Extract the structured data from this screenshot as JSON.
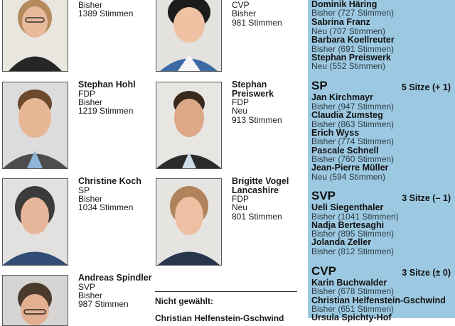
{
  "candidates": [
    {
      "id": "c1",
      "lines": [
        "Bisher",
        "1389 Stimmen"
      ]
    },
    {
      "id": "c2",
      "lines": [
        "CVP",
        "Bisher",
        "981 Stimmen"
      ]
    },
    {
      "id": "c3",
      "name": "Stephan Hohl",
      "lines": [
        "FDP",
        "Bisher",
        "1219 Stimmen"
      ]
    },
    {
      "id": "c4",
      "name": "Stephan\nPreiswerk",
      "lines": [
        "FDP",
        "Neu",
        "913 Stimmen"
      ]
    },
    {
      "id": "c5",
      "name": "Christine Koch",
      "lines": [
        "SP",
        "Bisher",
        "1034 Stimmen"
      ]
    },
    {
      "id": "c6",
      "name": "Brigitte Vogel\nLancashire",
      "lines": [
        "FDP",
        "Neu",
        "801 Stimmen"
      ]
    },
    {
      "id": "c7",
      "name": "Andreas Spindler",
      "lines": [
        "SVP",
        "Bisher",
        "987 Stimmen"
      ]
    }
  ],
  "not_elected": {
    "heading": "Nicht gewählt:",
    "first": "Christian Helfenstein-Gschwind"
  },
  "panel": {
    "top": [
      {
        "name": "Dominik Häring",
        "status": "Bisher (727 Stimmen)"
      },
      {
        "name": "Sabrina Franz",
        "status": "Neu (707 Stimmen)"
      },
      {
        "name": "Barbara Koellreuter",
        "status": "Bisher (691 Stimmen)"
      },
      {
        "name": "Stephan Preiswerk",
        "status": "Neu (552 Stimmen)"
      }
    ],
    "parties": [
      {
        "party": "SP",
        "seats": "5 Sitze (+ 1)",
        "members": [
          {
            "name": "Jan Kirchmayr",
            "status": "Bisher (947 Stimmen)"
          },
          {
            "name": "Claudia Zumsteg",
            "status": "Bisher (863 Stimmen)"
          },
          {
            "name": "Erich Wyss",
            "status": "Bisher (774 Stimmen)"
          },
          {
            "name": "Pascale Schnell",
            "status": "Bisher (760 Stimmen)"
          },
          {
            "name": "Jean-Pierre Müller",
            "status": "Neu (594 Stimmen)"
          }
        ]
      },
      {
        "party": "SVP",
        "seats": "3 Sitze (– 1)",
        "members": [
          {
            "name": "Ueli Siegenthaler",
            "status": "Bisher (1041 Stimmen)"
          },
          {
            "name": "Nadja Bertesaghi",
            "status": "Bisher (895 Stimmen)"
          },
          {
            "name": "Jolanda Zeller",
            "status": "Bisher (812 Stimmen)"
          }
        ]
      },
      {
        "party": "CVP",
        "seats": "3 Sitze (± 0)",
        "members": [
          {
            "name": "Karin Buchwalder",
            "status": "Bisher (678 Stimmen)"
          },
          {
            "name": "Christian Helfenstein-Gschwind",
            "status": "Bisher (651 Stimmen)"
          },
          {
            "name": "Ursula Spichty-Hof",
            "status": ""
          }
        ]
      }
    ]
  }
}
